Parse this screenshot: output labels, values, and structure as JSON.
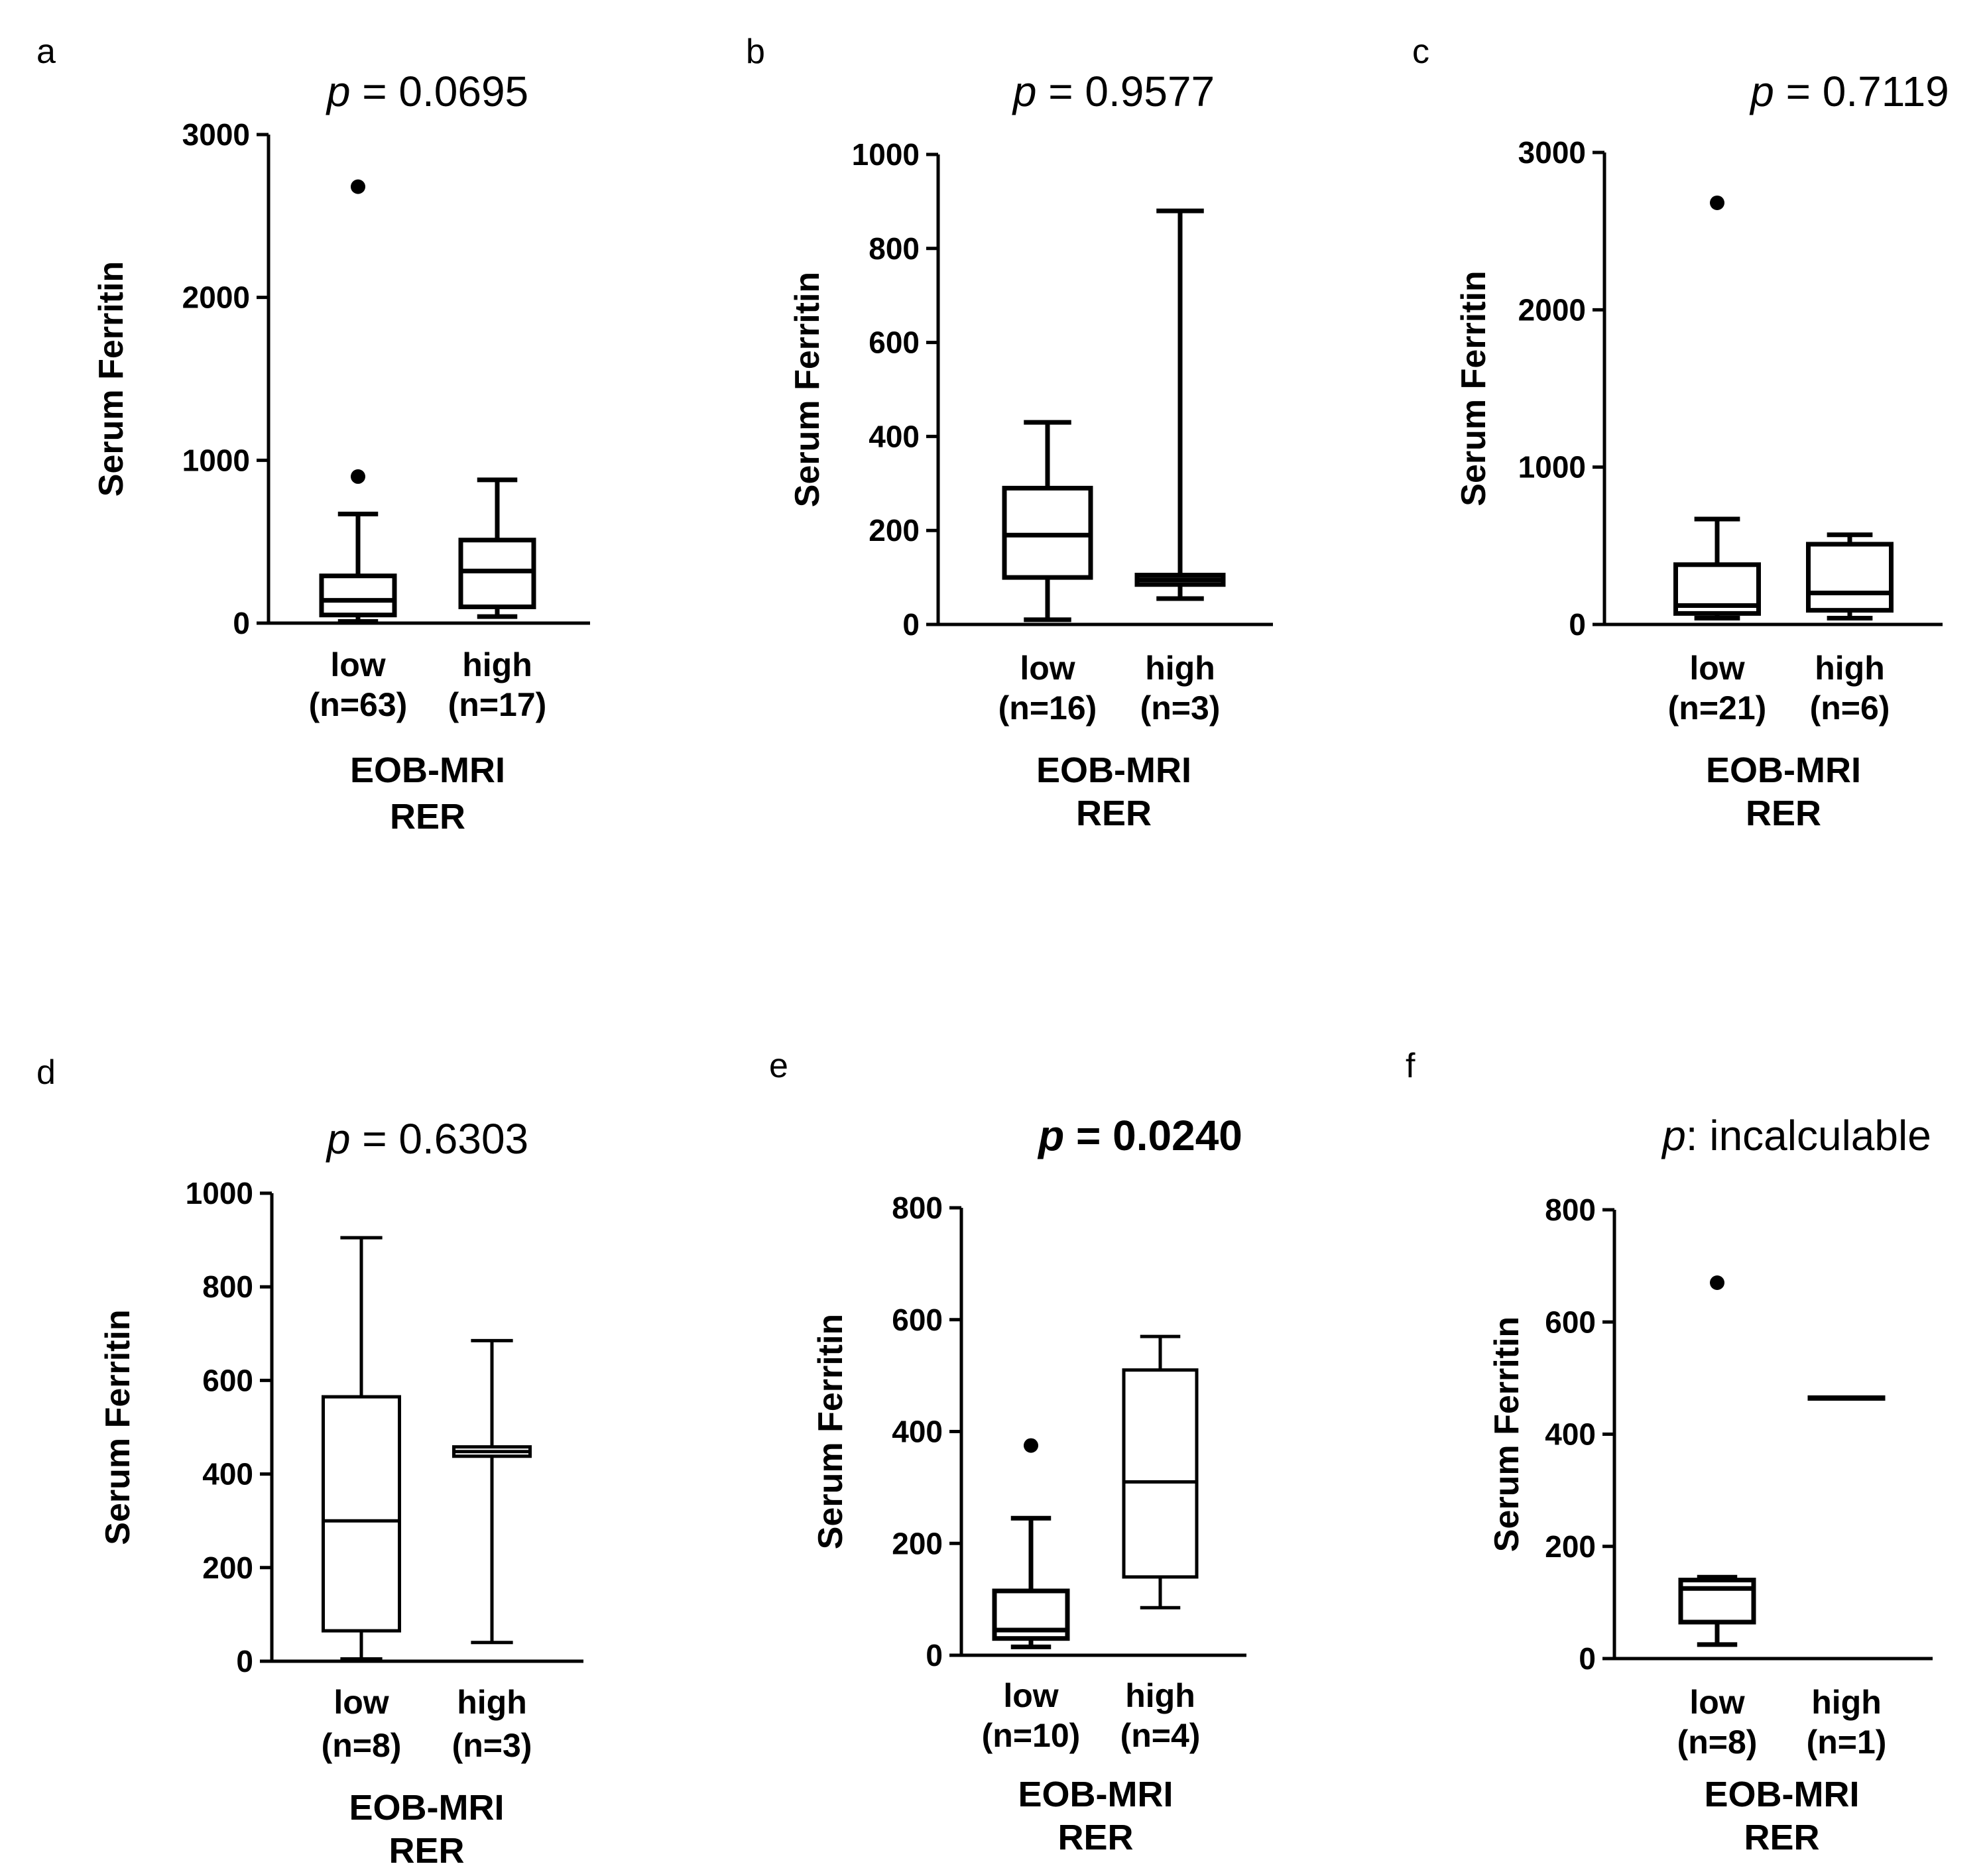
{
  "chart_data": [
    {
      "panel": "a",
      "type": "box",
      "title": {
        "prefix": "p",
        "rest": " = 0.0695",
        "bold": false
      },
      "ylabel": "Serum Ferritin",
      "xlabel": [
        "EOB-MRI",
        "RER"
      ],
      "ylim": [
        0,
        3000
      ],
      "yticks": [
        0,
        1000,
        2000,
        3000
      ],
      "groups": [
        {
          "name": "low",
          "n_label": "(n=63)",
          "min": 10,
          "q1": 50,
          "median": 140,
          "q3": 290,
          "max": 670,
          "outliers": [
            900,
            2680
          ],
          "box_style": "thick"
        },
        {
          "name": "high",
          "n_label": "(n=17)",
          "min": 40,
          "q1": 100,
          "median": 320,
          "q3": 510,
          "max": 880,
          "outliers": [],
          "box_style": "thick"
        }
      ]
    },
    {
      "panel": "b",
      "type": "box",
      "title": {
        "prefix": "p",
        "rest": " = 0.9577",
        "bold": false
      },
      "ylabel": "Serum Ferritin",
      "xlabel": [
        "EOB-MRI",
        "RER"
      ],
      "ylim": [
        0,
        1000
      ],
      "yticks": [
        0,
        200,
        400,
        600,
        800,
        1000
      ],
      "groups": [
        {
          "name": "low",
          "n_label": "(n=16)",
          "min": 10,
          "q1": 100,
          "median": 190,
          "q3": 290,
          "max": 430,
          "outliers": [],
          "box_style": "thick"
        },
        {
          "name": "high",
          "n_label": "(n=3)",
          "min": 55,
          "q1": 85,
          "median": 95,
          "q3": 105,
          "max": 880,
          "outliers": [],
          "box_style": "thick"
        }
      ]
    },
    {
      "panel": "c",
      "type": "box",
      "title": {
        "prefix": "p",
        "rest": " = 0.7119",
        "bold": false
      },
      "ylabel": "Serum Ferritin",
      "xlabel": [
        "EOB-MRI",
        "RER"
      ],
      "ylim": [
        0,
        3000
      ],
      "yticks": [
        0,
        1000,
        2000,
        3000
      ],
      "groups": [
        {
          "name": "low",
          "n_label": "(n=21)",
          "min": 40,
          "q1": 70,
          "median": 120,
          "q3": 380,
          "max": 670,
          "outliers": [
            2680
          ],
          "box_style": "thick"
        },
        {
          "name": "high",
          "n_label": "(n=6)",
          "min": 40,
          "q1": 90,
          "median": 200,
          "q3": 510,
          "max": 570,
          "outliers": [],
          "box_style": "thick"
        }
      ]
    },
    {
      "panel": "d",
      "type": "box",
      "title": {
        "prefix": "p",
        "rest": " = 0.6303",
        "bold": false
      },
      "ylabel": "Serum Ferritin",
      "xlabel": [
        "EOB-MRI",
        "RER"
      ],
      "ylim": [
        0,
        1000
      ],
      "yticks": [
        0,
        200,
        400,
        600,
        800,
        1000
      ],
      "groups": [
        {
          "name": "low",
          "n_label": "(n=8)",
          "min": 5,
          "q1": 65,
          "median": 300,
          "q3": 565,
          "max": 905,
          "outliers": [],
          "box_style": "thin"
        },
        {
          "name": "high",
          "n_label": "(n=3)",
          "min": 40,
          "q1": 438,
          "median": 448,
          "q3": 458,
          "max": 685,
          "outliers": [],
          "box_style": "thin"
        }
      ]
    },
    {
      "panel": "e",
      "type": "box",
      "title": {
        "prefix": "p",
        "rest": " = 0.0240",
        "bold": true
      },
      "ylabel": "Serum Ferritin",
      "xlabel": [
        "EOB-MRI",
        "RER"
      ],
      "ylim": [
        0,
        800
      ],
      "yticks": [
        0,
        200,
        400,
        600,
        800
      ],
      "groups": [
        {
          "name": "low",
          "n_label": "(n=10)",
          "min": 15,
          "q1": 30,
          "median": 45,
          "q3": 115,
          "max": 245,
          "outliers": [
            375
          ],
          "box_style": "thick"
        },
        {
          "name": "high",
          "n_label": "(n=4)",
          "min": 85,
          "q1": 140,
          "median": 310,
          "q3": 510,
          "max": 570,
          "outliers": [],
          "box_style": "thin"
        }
      ]
    },
    {
      "panel": "f",
      "type": "box",
      "title": {
        "prefix": "p",
        "rest": ": incalculable",
        "bold": false
      },
      "ylabel": "Serum Ferritin",
      "xlabel": [
        "EOB-MRI",
        "RER"
      ],
      "ylim": [
        0,
        800
      ],
      "yticks": [
        0,
        200,
        400,
        600,
        800
      ],
      "groups": [
        {
          "name": "low",
          "n_label": "(n=8)",
          "min": 25,
          "q1": 65,
          "median": 125,
          "q3": 140,
          "max": 145,
          "outliers": [
            670
          ],
          "box_style": "thick"
        },
        {
          "name": "high",
          "n_label": "(n=1)",
          "min": 465,
          "q1": 465,
          "median": 465,
          "q3": 465,
          "max": 465,
          "outliers": [],
          "box_style": "thick"
        }
      ]
    }
  ]
}
